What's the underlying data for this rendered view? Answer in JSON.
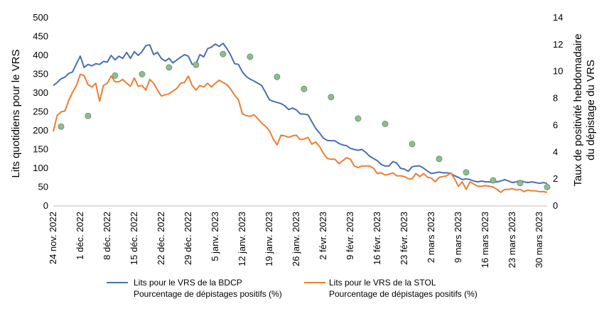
{
  "chart_data": {
    "type": "line",
    "y_left_label": "Lits quotidiens pour le VRS",
    "y_right_label_lines": [
      "Taux de positivité hebdomadaire",
      "du dépistage du VRS"
    ],
    "y_left_range": [
      0,
      500
    ],
    "y_left_ticks": [
      "0",
      "50",
      "100",
      "150",
      "200",
      "250",
      "300",
      "350",
      "400",
      "450",
      "500"
    ],
    "y_right_range": [
      0,
      14
    ],
    "y_right_ticks": [
      "0",
      "2",
      "4",
      "6",
      "8",
      "10",
      "12",
      "14"
    ],
    "x_day_range": [
      0,
      128
    ],
    "x_ticks": [
      {
        "day": 0,
        "label": "24 nov. 2022"
      },
      {
        "day": 7,
        "label": "1 déc. 2022"
      },
      {
        "day": 14,
        "label": "8 déc. 2022"
      },
      {
        "day": 21,
        "label": "15 déc. 2022"
      },
      {
        "day": 28,
        "label": "22 déc. 2022"
      },
      {
        "day": 35,
        "label": "29 déc. 2022"
      },
      {
        "day": 42,
        "label": "5 janv. 2023"
      },
      {
        "day": 49,
        "label": "12 janv. 2023"
      },
      {
        "day": 56,
        "label": "19 janv. 2023"
      },
      {
        "day": 63,
        "label": "26 janv. 2023"
      },
      {
        "day": 70,
        "label": "2 févr. 2023"
      },
      {
        "day": 77,
        "label": "9 févr. 2023"
      },
      {
        "day": 84,
        "label": "16 févr. 2023"
      },
      {
        "day": 91,
        "label": "23 févr. 2023"
      },
      {
        "day": 98,
        "label": "2 mars 2023"
      },
      {
        "day": 105,
        "label": "9 mars 2023"
      },
      {
        "day": 112,
        "label": "16 mars 2023"
      },
      {
        "day": 119,
        "label": "23 mars 2023"
      },
      {
        "day": 126,
        "label": "30 mars 2023"
      }
    ],
    "series": [
      {
        "name": "Lits pour le VRS de la BDCP",
        "color": "#4a6eb5",
        "axis": "left",
        "points": [
          [
            0,
            320
          ],
          [
            1,
            328
          ],
          [
            2,
            338
          ],
          [
            3,
            342
          ],
          [
            4,
            352
          ],
          [
            5,
            356
          ],
          [
            6,
            378
          ],
          [
            7,
            398
          ],
          [
            8,
            368
          ],
          [
            9,
            376
          ],
          [
            10,
            372
          ],
          [
            11,
            378
          ],
          [
            12,
            376
          ],
          [
            13,
            384
          ],
          [
            14,
            382
          ],
          [
            15,
            400
          ],
          [
            16,
            388
          ],
          [
            17,
            398
          ],
          [
            18,
            392
          ],
          [
            19,
            408
          ],
          [
            20,
            392
          ],
          [
            21,
            410
          ],
          [
            22,
            400
          ],
          [
            23,
            410
          ],
          [
            24,
            426
          ],
          [
            25,
            428
          ],
          [
            26,
            402
          ],
          [
            27,
            408
          ],
          [
            28,
            392
          ],
          [
            29,
            385
          ],
          [
            30,
            392
          ],
          [
            31,
            380
          ],
          [
            32,
            388
          ],
          [
            33,
            395
          ],
          [
            34,
            402
          ],
          [
            35,
            398
          ],
          [
            36,
            376
          ],
          [
            37,
            378
          ],
          [
            38,
            402
          ],
          [
            39,
            396
          ],
          [
            40,
            418
          ],
          [
            41,
            422
          ],
          [
            42,
            430
          ],
          [
            43,
            424
          ],
          [
            44,
            432
          ],
          [
            45,
            418
          ],
          [
            46,
            400
          ],
          [
            47,
            378
          ],
          [
            48,
            376
          ],
          [
            49,
            356
          ],
          [
            50,
            344
          ],
          [
            51,
            337
          ],
          [
            52,
            332
          ],
          [
            53,
            326
          ],
          [
            54,
            320
          ],
          [
            55,
            302
          ],
          [
            56,
            282
          ],
          [
            57,
            278
          ],
          [
            58,
            275
          ],
          [
            59,
            272
          ],
          [
            60,
            266
          ],
          [
            61,
            256
          ],
          [
            62,
            260
          ],
          [
            63,
            255
          ],
          [
            64,
            245
          ],
          [
            65,
            244
          ],
          [
            66,
            242
          ],
          [
            67,
            224
          ],
          [
            68,
            206
          ],
          [
            69,
            194
          ],
          [
            70,
            180
          ],
          [
            71,
            174
          ],
          [
            72,
            173
          ],
          [
            73,
            173
          ],
          [
            74,
            166
          ],
          [
            75,
            162
          ],
          [
            76,
            160
          ],
          [
            77,
            153
          ],
          [
            78,
            150
          ],
          [
            79,
            148
          ],
          [
            80,
            150
          ],
          [
            81,
            142
          ],
          [
            82,
            132
          ],
          [
            83,
            126
          ],
          [
            84,
            120
          ],
          [
            85,
            110
          ],
          [
            86,
            106
          ],
          [
            87,
            106
          ],
          [
            88,
            118
          ],
          [
            89,
            114
          ],
          [
            90,
            100
          ],
          [
            91,
            98
          ],
          [
            92,
            92
          ],
          [
            93,
            104
          ],
          [
            94,
            106
          ],
          [
            95,
            106
          ],
          [
            96,
            100
          ],
          [
            97,
            92
          ],
          [
            98,
            86
          ],
          [
            99,
            88
          ],
          [
            100,
            90
          ],
          [
            101,
            88
          ],
          [
            102,
            88
          ],
          [
            103,
            86
          ],
          [
            104,
            80
          ],
          [
            105,
            76
          ],
          [
            106,
            70
          ],
          [
            107,
            72
          ],
          [
            108,
            70
          ],
          [
            109,
            66
          ],
          [
            110,
            64
          ],
          [
            111,
            66
          ],
          [
            112,
            64
          ],
          [
            113,
            64
          ],
          [
            114,
            62
          ],
          [
            115,
            64
          ],
          [
            116,
            66
          ],
          [
            117,
            70
          ],
          [
            118,
            66
          ],
          [
            119,
            62
          ],
          [
            120,
            64
          ],
          [
            121,
            68
          ],
          [
            122,
            64
          ],
          [
            123,
            62
          ],
          [
            124,
            64
          ],
          [
            125,
            62
          ],
          [
            126,
            60
          ],
          [
            127,
            62
          ],
          [
            128,
            60
          ]
        ]
      },
      {
        "name": "Lits pour le VRS de la STOL",
        "color": "#ed7d31",
        "axis": "left",
        "points": [
          [
            0,
            198
          ],
          [
            1,
            240
          ],
          [
            2,
            250
          ],
          [
            3,
            252
          ],
          [
            4,
            280
          ],
          [
            5,
            302
          ],
          [
            6,
            320
          ],
          [
            7,
            350
          ],
          [
            8,
            346
          ],
          [
            9,
            322
          ],
          [
            10,
            316
          ],
          [
            11,
            326
          ],
          [
            12,
            278
          ],
          [
            13,
            320
          ],
          [
            14,
            326
          ],
          [
            15,
            345
          ],
          [
            16,
            330
          ],
          [
            17,
            330
          ],
          [
            18,
            336
          ],
          [
            19,
            326
          ],
          [
            20,
            318
          ],
          [
            21,
            340
          ],
          [
            22,
            318
          ],
          [
            23,
            320
          ],
          [
            24,
            308
          ],
          [
            25,
            336
          ],
          [
            26,
            326
          ],
          [
            27,
            308
          ],
          [
            28,
            292
          ],
          [
            29,
            295
          ],
          [
            30,
            298
          ],
          [
            31,
            305
          ],
          [
            32,
            312
          ],
          [
            33,
            326
          ],
          [
            34,
            328
          ],
          [
            35,
            345
          ],
          [
            36,
            320
          ],
          [
            37,
            308
          ],
          [
            38,
            320
          ],
          [
            39,
            316
          ],
          [
            40,
            326
          ],
          [
            41,
            316
          ],
          [
            42,
            326
          ],
          [
            43,
            334
          ],
          [
            44,
            328
          ],
          [
            45,
            322
          ],
          [
            46,
            310
          ],
          [
            47,
            294
          ],
          [
            48,
            282
          ],
          [
            49,
            245
          ],
          [
            50,
            240
          ],
          [
            51,
            238
          ],
          [
            52,
            242
          ],
          [
            53,
            232
          ],
          [
            54,
            220
          ],
          [
            55,
            212
          ],
          [
            56,
            200
          ],
          [
            57,
            178
          ],
          [
            58,
            162
          ],
          [
            59,
            188
          ],
          [
            60,
            186
          ],
          [
            61,
            182
          ],
          [
            62,
            186
          ],
          [
            63,
            188
          ],
          [
            64,
            176
          ],
          [
            65,
            178
          ],
          [
            66,
            182
          ],
          [
            67,
            164
          ],
          [
            68,
            170
          ],
          [
            69,
            158
          ],
          [
            70,
            140
          ],
          [
            71,
            126
          ],
          [
            72,
            124
          ],
          [
            73,
            124
          ],
          [
            74,
            112
          ],
          [
            75,
            120
          ],
          [
            76,
            128
          ],
          [
            77,
            124
          ],
          [
            78,
            106
          ],
          [
            79,
            102
          ],
          [
            80,
            106
          ],
          [
            81,
            106
          ],
          [
            82,
            106
          ],
          [
            83,
            100
          ],
          [
            84,
            86
          ],
          [
            85,
            88
          ],
          [
            86,
            82
          ],
          [
            87,
            84
          ],
          [
            88,
            88
          ],
          [
            89,
            80
          ],
          [
            90,
            80
          ],
          [
            91,
            78
          ],
          [
            92,
            72
          ],
          [
            93,
            72
          ],
          [
            94,
            86
          ],
          [
            95,
            78
          ],
          [
            96,
            86
          ],
          [
            97,
            76
          ],
          [
            98,
            74
          ],
          [
            99,
            64
          ],
          [
            100,
            76
          ],
          [
            101,
            78
          ],
          [
            102,
            80
          ],
          [
            103,
            88
          ],
          [
            104,
            72
          ],
          [
            105,
            52
          ],
          [
            106,
            64
          ],
          [
            107,
            44
          ],
          [
            108,
            64
          ],
          [
            109,
            58
          ],
          [
            110,
            52
          ],
          [
            111,
            52
          ],
          [
            112,
            54
          ],
          [
            113,
            52
          ],
          [
            114,
            50
          ],
          [
            115,
            44
          ],
          [
            116,
            36
          ],
          [
            117,
            44
          ],
          [
            118,
            44
          ],
          [
            119,
            46
          ],
          [
            120,
            42
          ],
          [
            121,
            44
          ],
          [
            122,
            38
          ],
          [
            123,
            42
          ],
          [
            124,
            40
          ],
          [
            125,
            40
          ],
          [
            126,
            38
          ],
          [
            127,
            38
          ],
          [
            128,
            36
          ]
        ]
      }
    ],
    "positivity": {
      "name": "Pourcentage de dépistages positifs (%)",
      "color": "#8fbc8f",
      "edge": "#6e9a6e",
      "axis": "right",
      "points": [
        [
          2,
          5.9
        ],
        [
          9,
          6.7
        ],
        [
          16,
          9.7
        ],
        [
          23,
          9.8
        ],
        [
          30,
          10.3
        ],
        [
          37,
          10.5
        ],
        [
          44,
          11.3
        ],
        [
          51,
          11.1
        ],
        [
          58,
          9.6
        ],
        [
          65,
          8.7
        ],
        [
          72,
          8.1
        ],
        [
          79,
          6.5
        ],
        [
          86,
          6.1
        ],
        [
          93,
          4.6
        ],
        [
          100,
          3.5
        ],
        [
          107,
          2.5
        ],
        [
          114,
          1.9
        ],
        [
          121,
          1.7
        ],
        [
          128,
          1.4
        ]
      ]
    },
    "legend": [
      {
        "line1": "Lits pour le VRS de la BDCP",
        "line2": "Pourcentage de dépistages positifs (%)",
        "color": "#4a6eb5"
      },
      {
        "line1": "Lits pour le VRS de la STOL",
        "line2": "Pourcentage de dépistages positifs (%)",
        "color": "#ed7d31"
      }
    ]
  }
}
